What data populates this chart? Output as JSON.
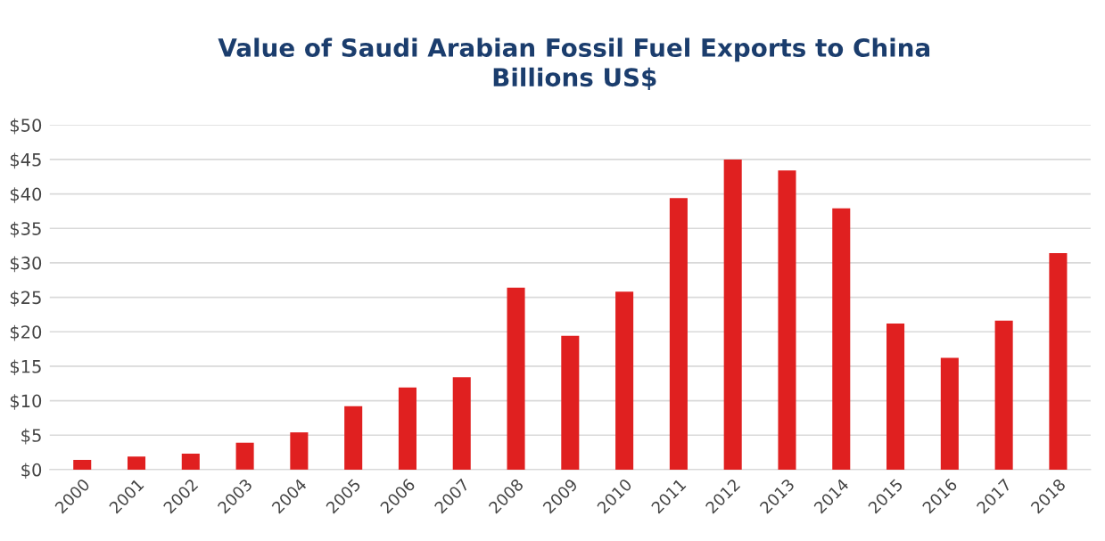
{
  "chart_data": {
    "type": "bar",
    "title": "Value of Saudi Arabian Fossil Fuel Exports to China\nBillions US$",
    "categories": [
      "2000",
      "2001",
      "2002",
      "2003",
      "2004",
      "2005",
      "2006",
      "2007",
      "2008",
      "2009",
      "2010",
      "2011",
      "2012",
      "2013",
      "2014",
      "2015",
      "2016",
      "2017",
      "2018"
    ],
    "values": [
      1.4,
      1.9,
      2.3,
      3.9,
      5.4,
      9.2,
      11.9,
      13.4,
      26.4,
      19.4,
      25.8,
      39.4,
      45.0,
      43.4,
      37.9,
      21.2,
      16.2,
      21.6,
      31.4
    ],
    "color": "#e02020",
    "ylim": [
      0,
      50
    ],
    "yticks": [
      {
        "value": 0,
        "label": "$0"
      },
      {
        "value": 5,
        "label": "$5"
      },
      {
        "value": 10,
        "label": "$10"
      },
      {
        "value": 15,
        "label": "$15"
      },
      {
        "value": 20,
        "label": "$20"
      },
      {
        "value": 25,
        "label": "$25"
      },
      {
        "value": 30,
        "label": "$30"
      },
      {
        "value": 35,
        "label": "$35"
      },
      {
        "value": 40,
        "label": "$40"
      },
      {
        "value": 45,
        "label": "$45"
      },
      {
        "value": 50,
        "label": "$50"
      }
    ],
    "grid": "y"
  }
}
